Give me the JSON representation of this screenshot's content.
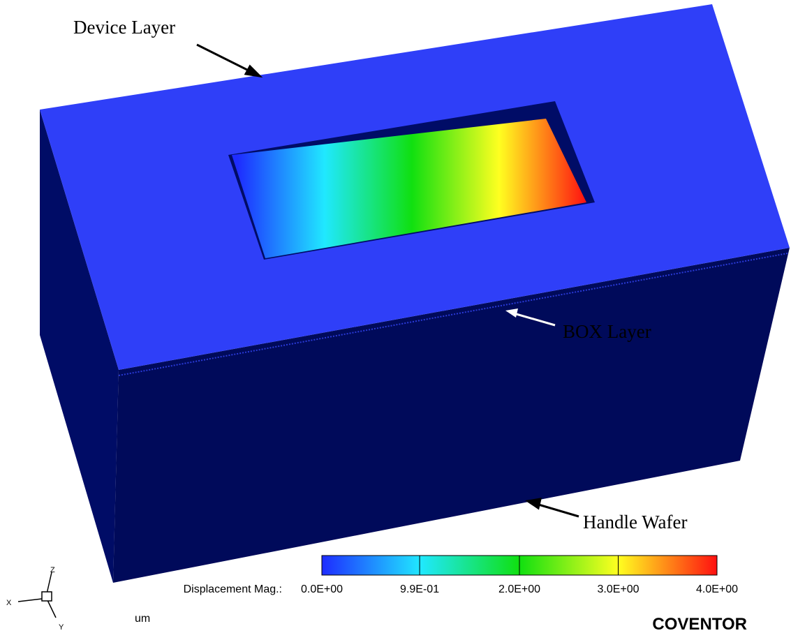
{
  "annotations": [
    {
      "label": "Device Layer"
    },
    {
      "label": "BOX Layer"
    },
    {
      "label": "Handle Wafer"
    }
  ],
  "colorbar": {
    "label": "Displacement Mag.:",
    "lim": [
      0,
      4
    ],
    "ticks": [
      {
        "value": 0,
        "label": "0.0E+00"
      },
      {
        "value": 0.99,
        "label": "9.9E-01"
      },
      {
        "value": 2.0,
        "label": "2.0E+00"
      },
      {
        "value": 3.0,
        "label": "3.0E+00"
      },
      {
        "value": 4.0,
        "label": "4.0E+00"
      }
    ],
    "colors": [
      "#1e2cff",
      "#20e8ff",
      "#10e010",
      "#ffff20",
      "#ff1010"
    ]
  },
  "unit": "um",
  "triad": {
    "x": "X",
    "y": "Y",
    "z": "Z"
  },
  "brand": "COVENTOR"
}
